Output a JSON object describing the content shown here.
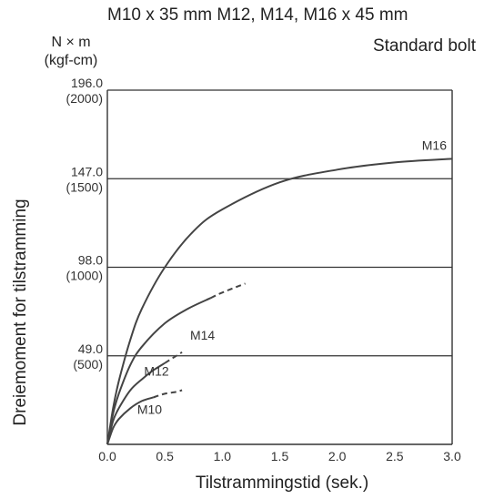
{
  "header": {
    "title_line1": "M10 x 35 mm M12, M14, M16 x 45 mm",
    "title_line2": "Standard bolt",
    "unit_line1": "N × m",
    "unit_line2": "(kgf-cm)"
  },
  "chart_data": {
    "type": "line",
    "title": "M10 x 35 mm M12, M14, M16 x 45 mm",
    "subtitle": "Standard bolt",
    "xlabel": "Tilstrammingstid (sek.)",
    "ylabel": "Dreiemoment for tilstramming",
    "xlim": [
      0,
      3.0
    ],
    "ylim": [
      0,
      196.0
    ],
    "x_ticks": [
      "0.0",
      "0.5",
      "1.0",
      "1.5",
      "2.0",
      "2.5",
      "3.0"
    ],
    "y_ticks": [
      {
        "value": 49.0,
        "label": "49.0",
        "sublabel": "(500)"
      },
      {
        "value": 98.0,
        "label": "98.0",
        "sublabel": "(1000)"
      },
      {
        "value": 147.0,
        "label": "147.0",
        "sublabel": "(1500)"
      },
      {
        "value": 196.0,
        "label": "196.0",
        "sublabel": "(2000)"
      }
    ],
    "grid": "horizontal",
    "series": [
      {
        "name": "M16",
        "x": [
          0,
          0.05,
          0.1,
          0.2,
          0.3,
          0.5,
          0.75,
          1.0,
          1.5,
          2.0,
          2.5,
          3.0
        ],
        "y": [
          0,
          20,
          35,
          58,
          75,
          98,
          118,
          130,
          145,
          152,
          156,
          158
        ],
        "dashed_from": null
      },
      {
        "name": "M14",
        "x": [
          0,
          0.05,
          0.1,
          0.2,
          0.3,
          0.5,
          0.7,
          0.9,
          1.0,
          1.2
        ],
        "y": [
          0,
          17,
          28,
          44,
          54,
          67,
          75,
          81,
          84,
          89
        ],
        "dashed_from": 0.9
      },
      {
        "name": "M12",
        "x": [
          0,
          0.05,
          0.1,
          0.2,
          0.3,
          0.4,
          0.5,
          0.6,
          0.65
        ],
        "y": [
          0,
          13,
          20,
          30,
          36,
          41,
          45,
          49,
          51
        ],
        "dashed_from": 0.5
      },
      {
        "name": "M10",
        "x": [
          0,
          0.05,
          0.1,
          0.2,
          0.3,
          0.4,
          0.5,
          0.6,
          0.65
        ],
        "y": [
          0,
          9,
          14,
          20,
          24,
          26,
          28,
          29,
          30
        ],
        "dashed_from": 0.4
      }
    ]
  }
}
